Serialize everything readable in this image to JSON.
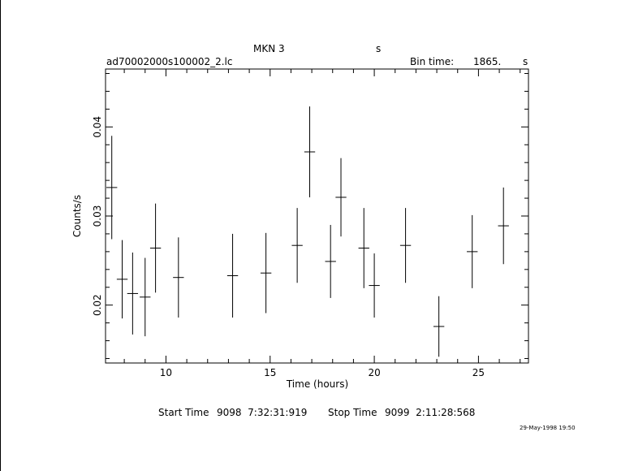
{
  "chart_data": {
    "type": "scatter",
    "title": "MKN 3",
    "title_unit": "s",
    "file_label": "ad70002000s100002_2.lc",
    "bin_time_label": "Bin time:",
    "bin_time_value": "1865.",
    "bin_time_unit": "s",
    "xlabel": "Time (hours)",
    "ylabel": "Counts/s",
    "xlim": [
      7.1,
      27.4
    ],
    "ylim": [
      0.0135,
      0.0465
    ],
    "x_ticks": [
      10,
      15,
      20,
      25
    ],
    "y_ticks": [
      0.02,
      0.03,
      0.04
    ],
    "x_tick_labels": [
      "10",
      "15",
      "20",
      "25"
    ],
    "y_tick_labels": [
      "0.02",
      "0.03",
      "0.04"
    ],
    "grid": false,
    "series": [
      {
        "points": [
          {
            "x": 7.4,
            "y": 0.0332,
            "xerr": 0.26,
            "yerr": 0.0058
          },
          {
            "x": 7.9,
            "y": 0.0229,
            "xerr": 0.26,
            "yerr": 0.0044
          },
          {
            "x": 8.4,
            "y": 0.0213,
            "xerr": 0.26,
            "yerr": 0.0046
          },
          {
            "x": 9.0,
            "y": 0.0209,
            "xerr": 0.26,
            "yerr": 0.0044
          },
          {
            "x": 9.5,
            "y": 0.0264,
            "xerr": 0.26,
            "yerr": 0.005
          },
          {
            "x": 10.6,
            "y": 0.0231,
            "xerr": 0.26,
            "yerr": 0.0045
          },
          {
            "x": 13.2,
            "y": 0.0233,
            "xerr": 0.26,
            "yerr": 0.0047
          },
          {
            "x": 14.8,
            "y": 0.0236,
            "xerr": 0.26,
            "yerr": 0.0045
          },
          {
            "x": 16.3,
            "y": 0.0267,
            "xerr": 0.26,
            "yerr": 0.0042
          },
          {
            "x": 16.9,
            "y": 0.0372,
            "xerr": 0.26,
            "yerr": 0.0051
          },
          {
            "x": 17.9,
            "y": 0.0249,
            "xerr": 0.26,
            "yerr": 0.0041
          },
          {
            "x": 18.4,
            "y": 0.0321,
            "xerr": 0.26,
            "yerr": 0.0044
          },
          {
            "x": 19.5,
            "y": 0.0264,
            "xerr": 0.26,
            "yerr": 0.0045
          },
          {
            "x": 20.0,
            "y": 0.0222,
            "xerr": 0.26,
            "yerr": 0.0036
          },
          {
            "x": 21.5,
            "y": 0.0267,
            "xerr": 0.26,
            "yerr": 0.0042
          },
          {
            "x": 23.1,
            "y": 0.0176,
            "xerr": 0.26,
            "yerr": 0.0034
          },
          {
            "x": 24.7,
            "y": 0.026,
            "xerr": 0.26,
            "yerr": 0.0041
          },
          {
            "x": 26.2,
            "y": 0.0289,
            "xerr": 0.26,
            "yerr": 0.0043
          }
        ]
      }
    ]
  },
  "footer": {
    "start_label": "Start Time",
    "start_value": "9098  7:32:31:919",
    "stop_label": "Stop Time",
    "stop_value": "9099  2:11:28:568",
    "date_stamp": "29-May-1998 19:50"
  }
}
